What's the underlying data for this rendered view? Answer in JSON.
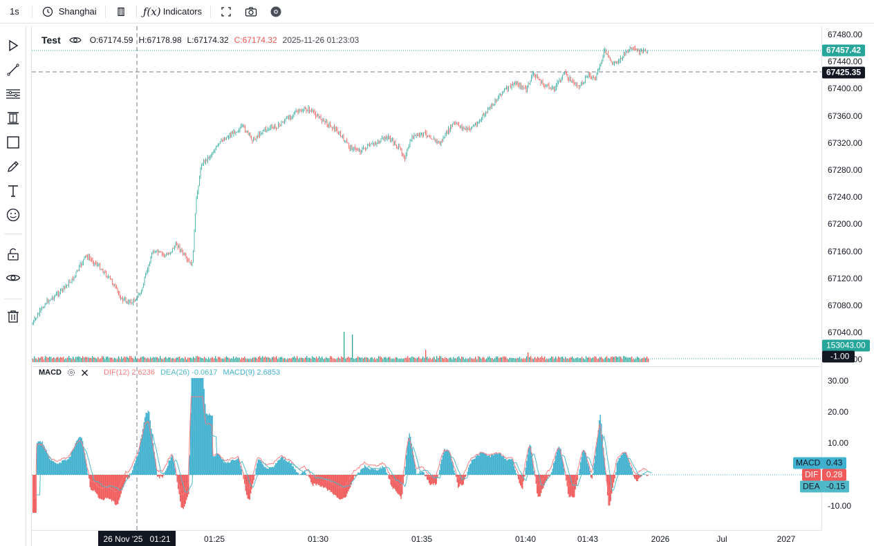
{
  "toolbar": {
    "interval": "1s",
    "timezone": "Shanghai",
    "indicators_label": "Indicators"
  },
  "legend": {
    "symbol": "Test",
    "open": "O:67174.59",
    "high": "H:67178.98",
    "low": "L:67174.32",
    "close": "C:67174.32",
    "datetime": "2025-11-26 01:23:03"
  },
  "macd_legend": {
    "name": "MACD",
    "dif": "DIF(12) 2.6236",
    "dea": "DEA(26) -0.0617",
    "macd": "MACD(9) 2.6853"
  },
  "price_axis": {
    "labels": [
      "67480.00",
      "67440.00",
      "67400.00",
      "67360.00",
      "67320.00",
      "67280.00",
      "67240.00",
      "67200.00",
      "67160.00",
      "67120.00",
      "67080.00",
      "67040.00",
      "67000.00"
    ],
    "last_price": "67457.42",
    "crosshair_price": "67425.35",
    "volume_tag": "153043.00",
    "neg_tag": "-1.00"
  },
  "macd_axis": {
    "labels": [
      "30.00",
      "20.00",
      "10.00",
      "-10.00"
    ],
    "tags": [
      {
        "label": "MACD",
        "value": "0.43"
      },
      {
        "label": "DIF",
        "value": "0.28"
      },
      {
        "label": "DEA",
        "value": "-0.15"
      }
    ]
  },
  "time_axis": {
    "labels": [
      "01:25",
      "01:30",
      "01:35",
      "01:40",
      "01:43",
      "2026",
      "Jul",
      "2027"
    ],
    "crosshair_date": "26 Nov '25",
    "crosshair_time": "01:21"
  },
  "colors": {
    "up": "#26a69a",
    "down": "#ef5350",
    "dif": "#f77c80",
    "dea": "#4fb8c9",
    "hist_up": "#3fb1cf",
    "hist_down": "#f05a5a",
    "last_price_bg": "#26a69a",
    "crosshair_bg": "#131722"
  },
  "left_tools": [
    "cursor-icon",
    "trend-line-icon",
    "fib-icon",
    "pattern-icon",
    "rectangle-icon",
    "brush-icon",
    "text-icon",
    "emoji-icon",
    "lock-icon",
    "eye-icon",
    "trash-icon"
  ]
}
